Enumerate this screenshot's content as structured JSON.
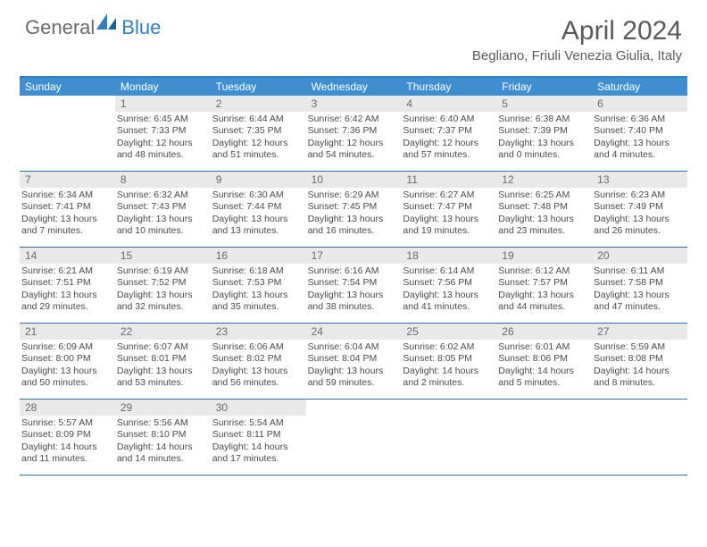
{
  "logo": {
    "general": "General",
    "blue": "Blue"
  },
  "title": "April 2024",
  "location": "Begliano, Friuli Venezia Giulia, Italy",
  "colors": {
    "header_bar": "#3f8fd0",
    "accent": "#2f7fc1",
    "daynum_bg": "#e9e9e9",
    "rule": "#2f6fa8",
    "text": "#4a4a4a"
  },
  "daynames": [
    "Sunday",
    "Monday",
    "Tuesday",
    "Wednesday",
    "Thursday",
    "Friday",
    "Saturday"
  ],
  "weeks": [
    [
      {
        "n": "",
        "sr": "",
        "ss": "",
        "dl": ""
      },
      {
        "n": "1",
        "sr": "Sunrise: 6:45 AM",
        "ss": "Sunset: 7:33 PM",
        "dl": "Daylight: 12 hours and 48 minutes."
      },
      {
        "n": "2",
        "sr": "Sunrise: 6:44 AM",
        "ss": "Sunset: 7:35 PM",
        "dl": "Daylight: 12 hours and 51 minutes."
      },
      {
        "n": "3",
        "sr": "Sunrise: 6:42 AM",
        "ss": "Sunset: 7:36 PM",
        "dl": "Daylight: 12 hours and 54 minutes."
      },
      {
        "n": "4",
        "sr": "Sunrise: 6:40 AM",
        "ss": "Sunset: 7:37 PM",
        "dl": "Daylight: 12 hours and 57 minutes."
      },
      {
        "n": "5",
        "sr": "Sunrise: 6:38 AM",
        "ss": "Sunset: 7:39 PM",
        "dl": "Daylight: 13 hours and 0 minutes."
      },
      {
        "n": "6",
        "sr": "Sunrise: 6:36 AM",
        "ss": "Sunset: 7:40 PM",
        "dl": "Daylight: 13 hours and 4 minutes."
      }
    ],
    [
      {
        "n": "7",
        "sr": "Sunrise: 6:34 AM",
        "ss": "Sunset: 7:41 PM",
        "dl": "Daylight: 13 hours and 7 minutes."
      },
      {
        "n": "8",
        "sr": "Sunrise: 6:32 AM",
        "ss": "Sunset: 7:43 PM",
        "dl": "Daylight: 13 hours and 10 minutes."
      },
      {
        "n": "9",
        "sr": "Sunrise: 6:30 AM",
        "ss": "Sunset: 7:44 PM",
        "dl": "Daylight: 13 hours and 13 minutes."
      },
      {
        "n": "10",
        "sr": "Sunrise: 6:29 AM",
        "ss": "Sunset: 7:45 PM",
        "dl": "Daylight: 13 hours and 16 minutes."
      },
      {
        "n": "11",
        "sr": "Sunrise: 6:27 AM",
        "ss": "Sunset: 7:47 PM",
        "dl": "Daylight: 13 hours and 19 minutes."
      },
      {
        "n": "12",
        "sr": "Sunrise: 6:25 AM",
        "ss": "Sunset: 7:48 PM",
        "dl": "Daylight: 13 hours and 23 minutes."
      },
      {
        "n": "13",
        "sr": "Sunrise: 6:23 AM",
        "ss": "Sunset: 7:49 PM",
        "dl": "Daylight: 13 hours and 26 minutes."
      }
    ],
    [
      {
        "n": "14",
        "sr": "Sunrise: 6:21 AM",
        "ss": "Sunset: 7:51 PM",
        "dl": "Daylight: 13 hours and 29 minutes."
      },
      {
        "n": "15",
        "sr": "Sunrise: 6:19 AM",
        "ss": "Sunset: 7:52 PM",
        "dl": "Daylight: 13 hours and 32 minutes."
      },
      {
        "n": "16",
        "sr": "Sunrise: 6:18 AM",
        "ss": "Sunset: 7:53 PM",
        "dl": "Daylight: 13 hours and 35 minutes."
      },
      {
        "n": "17",
        "sr": "Sunrise: 6:16 AM",
        "ss": "Sunset: 7:54 PM",
        "dl": "Daylight: 13 hours and 38 minutes."
      },
      {
        "n": "18",
        "sr": "Sunrise: 6:14 AM",
        "ss": "Sunset: 7:56 PM",
        "dl": "Daylight: 13 hours and 41 minutes."
      },
      {
        "n": "19",
        "sr": "Sunrise: 6:12 AM",
        "ss": "Sunset: 7:57 PM",
        "dl": "Daylight: 13 hours and 44 minutes."
      },
      {
        "n": "20",
        "sr": "Sunrise: 6:11 AM",
        "ss": "Sunset: 7:58 PM",
        "dl": "Daylight: 13 hours and 47 minutes."
      }
    ],
    [
      {
        "n": "21",
        "sr": "Sunrise: 6:09 AM",
        "ss": "Sunset: 8:00 PM",
        "dl": "Daylight: 13 hours and 50 minutes."
      },
      {
        "n": "22",
        "sr": "Sunrise: 6:07 AM",
        "ss": "Sunset: 8:01 PM",
        "dl": "Daylight: 13 hours and 53 minutes."
      },
      {
        "n": "23",
        "sr": "Sunrise: 6:06 AM",
        "ss": "Sunset: 8:02 PM",
        "dl": "Daylight: 13 hours and 56 minutes."
      },
      {
        "n": "24",
        "sr": "Sunrise: 6:04 AM",
        "ss": "Sunset: 8:04 PM",
        "dl": "Daylight: 13 hours and 59 minutes."
      },
      {
        "n": "25",
        "sr": "Sunrise: 6:02 AM",
        "ss": "Sunset: 8:05 PM",
        "dl": "Daylight: 14 hours and 2 minutes."
      },
      {
        "n": "26",
        "sr": "Sunrise: 6:01 AM",
        "ss": "Sunset: 8:06 PM",
        "dl": "Daylight: 14 hours and 5 minutes."
      },
      {
        "n": "27",
        "sr": "Sunrise: 5:59 AM",
        "ss": "Sunset: 8:08 PM",
        "dl": "Daylight: 14 hours and 8 minutes."
      }
    ],
    [
      {
        "n": "28",
        "sr": "Sunrise: 5:57 AM",
        "ss": "Sunset: 8:09 PM",
        "dl": "Daylight: 14 hours and 11 minutes."
      },
      {
        "n": "29",
        "sr": "Sunrise: 5:56 AM",
        "ss": "Sunset: 8:10 PM",
        "dl": "Daylight: 14 hours and 14 minutes."
      },
      {
        "n": "30",
        "sr": "Sunrise: 5:54 AM",
        "ss": "Sunset: 8:11 PM",
        "dl": "Daylight: 14 hours and 17 minutes."
      },
      {
        "n": "",
        "sr": "",
        "ss": "",
        "dl": ""
      },
      {
        "n": "",
        "sr": "",
        "ss": "",
        "dl": ""
      },
      {
        "n": "",
        "sr": "",
        "ss": "",
        "dl": ""
      },
      {
        "n": "",
        "sr": "",
        "ss": "",
        "dl": ""
      }
    ]
  ]
}
